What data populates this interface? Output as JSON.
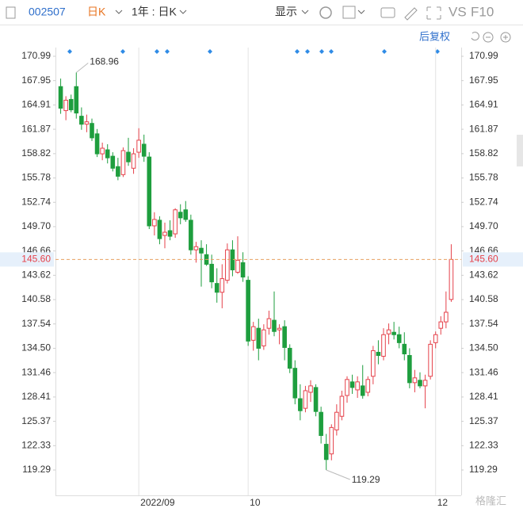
{
  "toolbar": {
    "code": "002507",
    "period": "日K",
    "range": "1年 : 日K",
    "display": "显示",
    "vs": "VS",
    "f10": "F10",
    "adjust": "后复权",
    "watermark": "格隆汇"
  },
  "chart_data": {
    "type": "candlestick",
    "open": [
      167.2,
      164.2,
      165.6,
      167.2,
      163.5,
      162.5,
      162.6,
      161.3,
      158.8,
      159.3,
      158.5,
      157.2,
      156.2,
      159.0,
      157.0,
      159.0,
      160.0,
      158.4,
      149.8,
      150.5,
      148.6,
      149.2,
      148.8,
      151.5,
      151.8,
      150.5,
      146.8,
      147.0,
      146.2,
      145.0,
      142.6,
      141.5,
      143.0,
      146.8,
      144.0,
      145.2,
      143.0,
      135.5,
      137.0,
      134.8,
      137.0,
      138.0,
      136.8,
      137.2,
      134.5,
      132.0,
      128.2,
      127.0,
      129.0,
      129.6,
      126.5,
      122.5,
      121.3,
      124.3,
      126.0,
      128.6,
      130.3,
      129.3,
      129.8,
      129.0,
      131.0,
      134.0,
      133.5,
      136.3,
      136.5,
      136.2,
      135.0,
      133.6,
      130.2,
      130.5,
      129.8,
      131.0,
      135.2,
      137.0,
      137.8,
      140.6
    ],
    "high": [
      168.2,
      166.0,
      166.2,
      168.96,
      164.6,
      163.7,
      163.2,
      161.9,
      160.2,
      160.0,
      159.0,
      158.3,
      159.6,
      160.8,
      159.5,
      162.0,
      161.2,
      159.0,
      151.5,
      151.0,
      150.2,
      150.5,
      152.0,
      152.5,
      152.9,
      151.2,
      147.8,
      148.0,
      147.5,
      146.2,
      144.5,
      145.0,
      147.6,
      148.0,
      148.5,
      146.5,
      143.5,
      137.8,
      138.2,
      137.5,
      139.2,
      141.6,
      137.5,
      138.0,
      135.0,
      133.0,
      130.0,
      129.8,
      130.5,
      130.0,
      127.2,
      123.8,
      125.0,
      127.5,
      129.2,
      131.0,
      131.2,
      131.0,
      132.4,
      131.0,
      134.8,
      135.5,
      137.0,
      137.6,
      137.8,
      137.2,
      136.5,
      134.5,
      131.8,
      131.5,
      131.2,
      135.5,
      136.6,
      138.5,
      141.6,
      147.5
    ],
    "low": [
      163.8,
      163.0,
      164.0,
      163.2,
      161.8,
      161.5,
      160.4,
      158.4,
      158.0,
      157.6,
      156.6,
      155.5,
      155.9,
      157.3,
      156.3,
      158.3,
      157.8,
      149.4,
      148.6,
      147.5,
      147.0,
      148.0,
      148.3,
      150.0,
      150.3,
      146.2,
      145.2,
      142.2,
      144.8,
      142.0,
      140.2,
      139.5,
      142.6,
      143.5,
      143.8,
      142.8,
      134.8,
      134.2,
      133.0,
      134.3,
      136.2,
      136.0,
      135.0,
      133.0,
      131.4,
      127.5,
      125.5,
      126.5,
      127.8,
      126.0,
      122.6,
      119.29,
      120.5,
      123.6,
      125.5,
      127.7,
      128.8,
      128.3,
      128.2,
      128.5,
      130.0,
      132.5,
      133.0,
      135.0,
      135.6,
      134.5,
      133.0,
      129.5,
      129.0,
      129.5,
      127.0,
      130.6,
      134.5,
      136.2,
      137.0,
      140.3
    ],
    "close": [
      164.5,
      165.5,
      164.3,
      163.9,
      162.5,
      162.8,
      160.8,
      158.8,
      159.5,
      158.3,
      157.0,
      156.0,
      159.2,
      157.8,
      158.8,
      160.5,
      158.5,
      149.8,
      150.6,
      148.2,
      149.0,
      148.5,
      151.8,
      150.8,
      150.6,
      146.8,
      147.2,
      146.4,
      145.0,
      142.8,
      141.5,
      143.2,
      146.8,
      144.3,
      145.5,
      143.4,
      135.4,
      137.2,
      134.5,
      136.8,
      138.2,
      136.6,
      137.0,
      134.6,
      132.0,
      128.3,
      126.7,
      129.2,
      129.8,
      126.6,
      123.6,
      120.6,
      124.6,
      126.5,
      128.5,
      130.6,
      129.6,
      130.3,
      128.6,
      130.6,
      134.2,
      133.6,
      136.2,
      136.8,
      136.2,
      135.2,
      133.8,
      130.2,
      130.8,
      129.8,
      130.5,
      135.0,
      136.2,
      137.8,
      139.0,
      145.6
    ],
    "up_color": "#e5414a",
    "down_color": "#1e9e3e",
    "ylim": [
      116.12,
      172.08
    ],
    "yticks": [
      119.29,
      122.33,
      125.37,
      128.41,
      131.46,
      {
        "value": 134.5,
        "label": "134.50"
      },
      137.54,
      140.58,
      143.62,
      146.66,
      {
        "value": 149.7,
        "label": "149.70"
      },
      152.74,
      155.78,
      158.82,
      161.87,
      164.91,
      167.95,
      170.99
    ],
    "xlim": [
      -1,
      76
    ],
    "xticks": [
      {
        "value": 15,
        "label": "2022/09"
      },
      {
        "value": 36,
        "label": "10"
      },
      {
        "value": 72,
        "label": "12"
      }
    ],
    "last_price": {
      "value": 145.6,
      "label": "145.60"
    },
    "max_label": 168.96,
    "min_label": 119.29
  }
}
